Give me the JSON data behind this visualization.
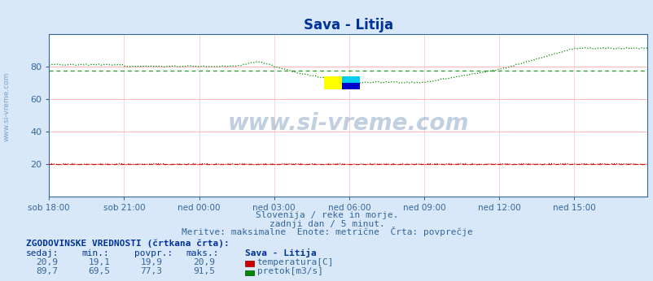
{
  "title": "Sava - Litija",
  "bg_color": "#d8e8f8",
  "plot_bg_color": "#ffffff",
  "grid_color_h": "#ffaaaa",
  "grid_color_v": "#ffcccc",
  "xlim": [
    0,
    287
  ],
  "ylim": [
    0,
    100
  ],
  "yticks": [
    20,
    40,
    60,
    80
  ],
  "xtick_labels": [
    "sob 18:00",
    "sob 21:00",
    "ned 00:00",
    "ned 03:00",
    "ned 06:00",
    "ned 09:00",
    "ned 12:00",
    "ned 15:00"
  ],
  "xtick_positions": [
    0,
    36,
    72,
    108,
    144,
    180,
    216,
    252
  ],
  "subtitle1": "Slovenija / reke in morje.",
  "subtitle2": "zadnji dan / 5 minut.",
  "subtitle3": "Meritve: maksimalne  Enote: metrične  Črta: povprečje",
  "watermark": "www.si-vreme.com",
  "legend_title": "ZGODOVINSKE VREDNOSTI (črtkana črta):",
  "col_headers": [
    "sedaj:",
    "min.:",
    "povpr.:",
    "maks.:",
    "Sava - Litija"
  ],
  "row1": [
    "20,9",
    "19,1",
    "19,9",
    "20,9",
    "temperatura[C]"
  ],
  "row2": [
    "89,7",
    "69,5",
    "77,3",
    "91,5",
    "pretok[m3/s]"
  ],
  "temp_color": "#cc0000",
  "flow_color": "#008800",
  "avg_temp": 19.9,
  "avg_flow": 77.3,
  "temp_min": 19.1,
  "flow_min": 69.5,
  "temp_max": 20.9,
  "flow_max": 91.5
}
